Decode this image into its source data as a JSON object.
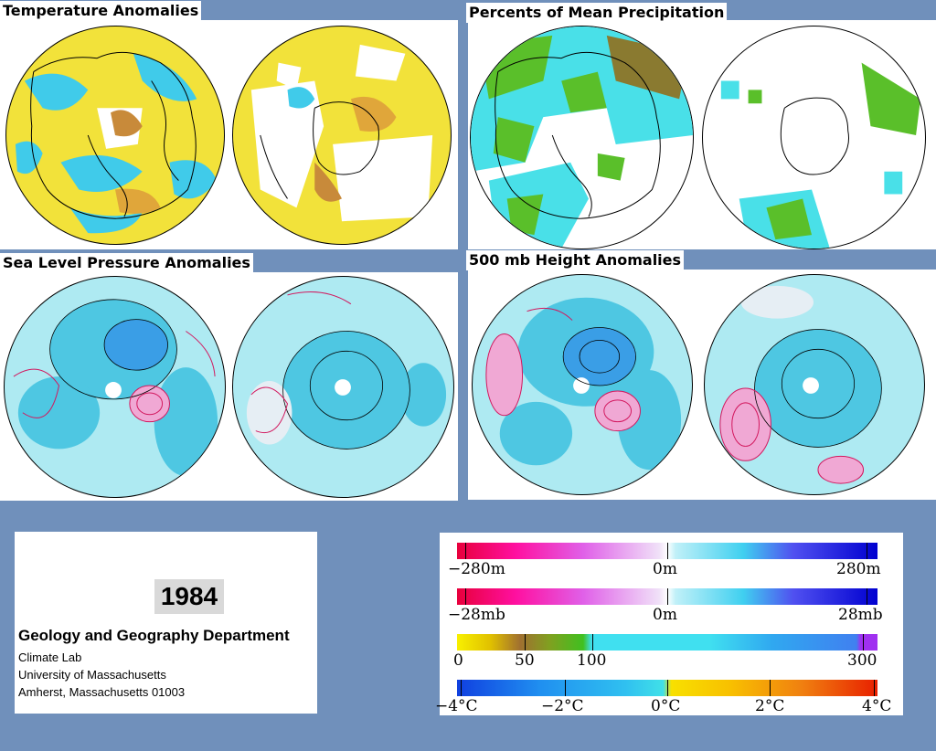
{
  "panels": {
    "temperature": {
      "title": "Temperature Anomalies"
    },
    "precipitation": {
      "title": "Percents of Mean Precipitation"
    },
    "pressure": {
      "title": "Sea Level Pressure Anomalies"
    },
    "height": {
      "title": "500 mb Height Anomalies"
    }
  },
  "info": {
    "year": "1984",
    "department": "Geology and Geography Department",
    "lab": "Climate Lab",
    "university": "University of Massachusetts",
    "address": "Amherst, Massachusetts 01003"
  },
  "legend": {
    "height_scale": {
      "min_label": "−280m",
      "mid_label": "0m",
      "max_label": "280m"
    },
    "pressure_scale": {
      "min_label": "−28mb",
      "mid_label": "0m",
      "max_label": "28mb"
    },
    "precip_scale": {
      "labels": [
        "0",
        "50",
        "100",
        "300"
      ]
    },
    "temp_scale": {
      "labels": [
        "−4°C",
        "−2°C",
        "0°C",
        "2°C",
        "4°C"
      ]
    }
  },
  "colors": {
    "background": "#7090bb",
    "temp_base": "#f2e23a",
    "temp_cold": "#40cbea",
    "precip_cyan": "#49e0e8",
    "precip_green": "#5abf2a",
    "anomaly_light": "#aeeaf2",
    "anomaly_neg": "#4ec7e2",
    "anomaly_pos_line": "#d2185e"
  }
}
